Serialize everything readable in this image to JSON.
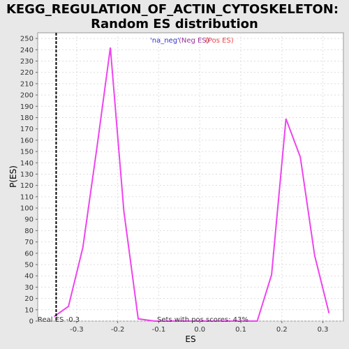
{
  "chart_data": {
    "type": "line",
    "title_line1": "KEGG_REGULATION_OF_ACTIN_CYTOSKELETON:",
    "title_line2": "Random ES distribution",
    "xlabel": "ES",
    "ylabel": "P(ES)",
    "xlim": [
      -0.395,
      0.35
    ],
    "ylim": [
      0,
      255
    ],
    "xticks": [
      -0.3,
      -0.2,
      -0.1,
      0.0,
      0.1,
      0.2,
      0.3
    ],
    "xtick_labels": [
      "-0.3",
      "-0.2",
      "-0.1",
      "0.0",
      "0.1",
      "0.2",
      "0.3"
    ],
    "yticks": [
      0,
      10,
      20,
      30,
      40,
      50,
      60,
      70,
      80,
      90,
      100,
      110,
      120,
      130,
      140,
      150,
      160,
      170,
      180,
      190,
      200,
      210,
      220,
      230,
      240,
      250
    ],
    "grid": true,
    "series": [
      {
        "color": "#ee44ee",
        "x": [
          -0.355,
          -0.32,
          -0.285,
          -0.25,
          -0.218,
          -0.185,
          -0.15,
          -0.11,
          -0.075,
          0.0,
          0.07,
          0.14,
          0.175,
          0.21,
          0.245,
          0.28,
          0.315
        ],
        "y": [
          4,
          13,
          65,
          155,
          242,
          97,
          2,
          0,
          0,
          0,
          0,
          0,
          41,
          179,
          145,
          58,
          7
        ]
      }
    ],
    "real_es": -0.35,
    "real_es_label": "Real ES -0.3",
    "pos_scores_label": "Sets with pos scores: 43%",
    "legend": {
      "neg_text": "'na_neg'",
      "neg_color": "#3333cc",
      "neg_es_text": "(Neg ES)",
      "neg_es_color": "#993399",
      "pos_es_text": "(Pos ES)",
      "pos_es_color": "#ee4444",
      "placement": "top-center"
    }
  }
}
